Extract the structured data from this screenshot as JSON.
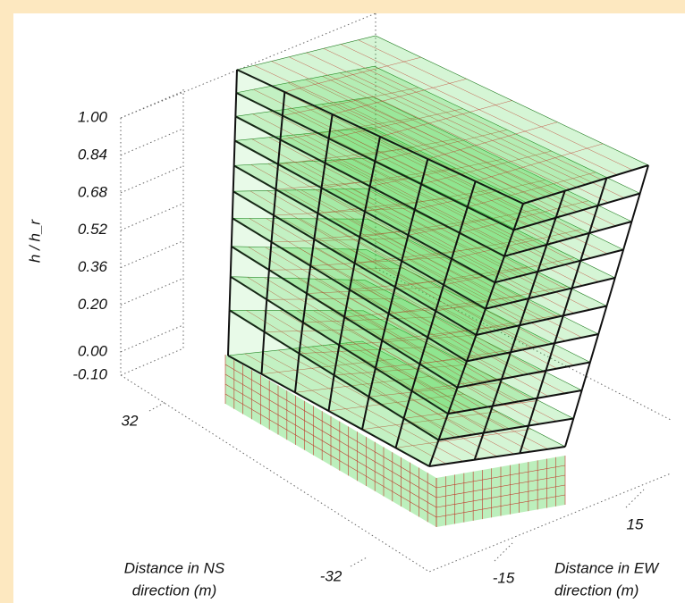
{
  "chart_data": {
    "type": "surface3d",
    "zlabel": "h / h_r",
    "zlim": [
      -0.1,
      1.0
    ],
    "zticks": [
      {
        "value": 1.0,
        "label": "1.00"
      },
      {
        "value": 0.84,
        "label": "0.84"
      },
      {
        "value": 0.68,
        "label": "0.68"
      },
      {
        "value": 0.52,
        "label": "0.52"
      },
      {
        "value": 0.36,
        "label": "0.36"
      },
      {
        "value": 0.2,
        "label": "0.20"
      },
      {
        "value": 0.0,
        "label": "0.00"
      },
      {
        "value": -0.1,
        "label": "-0.10"
      }
    ],
    "ylabel": [
      "Distance in NS",
      "direction (m)"
    ],
    "ylim": [
      32,
      -32
    ],
    "yticks": [
      32,
      -32
    ],
    "xlabel": [
      "Distance in EW",
      "direction (m)"
    ],
    "xlim": [
      -15,
      15
    ],
    "xticks": [
      -15,
      15
    ],
    "color": "#3ed23e"
  }
}
